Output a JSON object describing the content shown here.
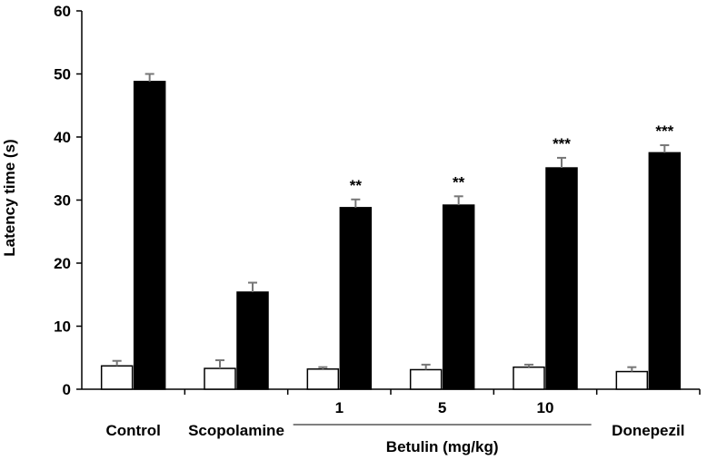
{
  "chart_data": {
    "type": "bar",
    "ylabel": "Latency time (s)",
    "xlabel": "",
    "ylim": [
      0,
      60
    ],
    "yticks": [
      "0",
      "10",
      "20",
      "30",
      "40",
      "50",
      "60"
    ],
    "categories": [
      "Control",
      "Scopolamine",
      "1",
      "5",
      "10",
      "Donepezil"
    ],
    "group_label": "Betulin (mg/kg)",
    "group_members": [
      "1",
      "5",
      "10"
    ],
    "series": [
      {
        "values": [
          3.7,
          3.3,
          3.2,
          3.1,
          3.5,
          2.8
        ],
        "errors": [
          0.8,
          1.3,
          0.3,
          0.8,
          0.4,
          0.7
        ],
        "fill": "#ffffff"
      },
      {
        "values": [
          48.8,
          15.4,
          28.8,
          29.2,
          35.1,
          37.5
        ],
        "errors": [
          1.2,
          1.5,
          1.3,
          1.4,
          1.6,
          1.2
        ],
        "fill": "#000000"
      }
    ],
    "significance": [
      "",
      "",
      "**",
      "**",
      "***",
      "***"
    ],
    "grid": false,
    "legend": "none"
  }
}
